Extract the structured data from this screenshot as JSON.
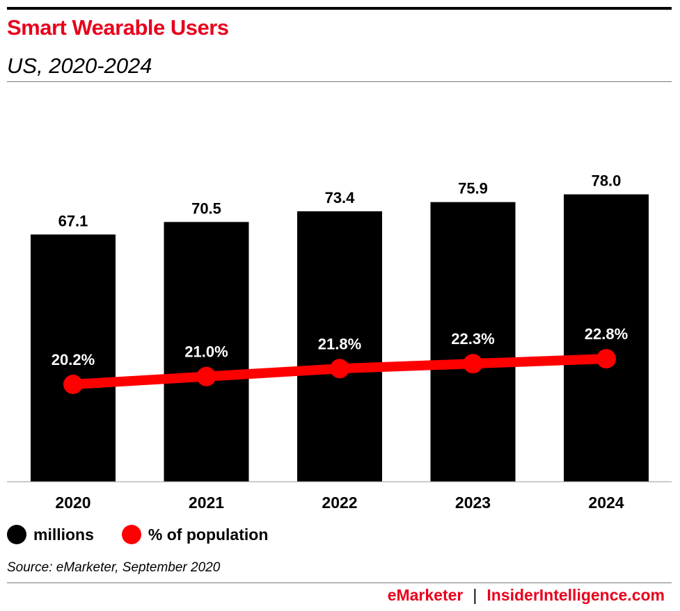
{
  "header": {
    "title": "Smart Wearable Users",
    "subtitle": "US, 2020-2024"
  },
  "legend": {
    "items": [
      {
        "label": "millions",
        "color": "#000000"
      },
      {
        "label": "% of population",
        "color": "#ff0000"
      }
    ]
  },
  "source": "Source: eMarketer, September 2020",
  "footer": {
    "brand_left": "eMarketer",
    "separator": "|",
    "brand_right": "InsiderIntelligence.com"
  },
  "colors": {
    "accent_red": "#e8001c",
    "bar": "#000000",
    "line": "#ff0000"
  },
  "chart_data": {
    "type": "bar",
    "categories": [
      "2020",
      "2021",
      "2022",
      "2023",
      "2024"
    ],
    "series": [
      {
        "name": "millions",
        "type": "bar",
        "values": [
          67.1,
          70.5,
          73.4,
          75.9,
          78.0
        ],
        "labels": [
          "67.1",
          "70.5",
          "73.4",
          "75.9",
          "78.0"
        ]
      },
      {
        "name": "% of population",
        "type": "line",
        "values": [
          20.2,
          21.0,
          21.8,
          22.3,
          22.8
        ],
        "labels": [
          "20.2%",
          "21.0%",
          "21.8%",
          "22.3%",
          "22.8%"
        ]
      }
    ],
    "title": "Smart Wearable Users",
    "subtitle": "US, 2020-2024",
    "grid": false,
    "legend_position": "bottom-left"
  }
}
